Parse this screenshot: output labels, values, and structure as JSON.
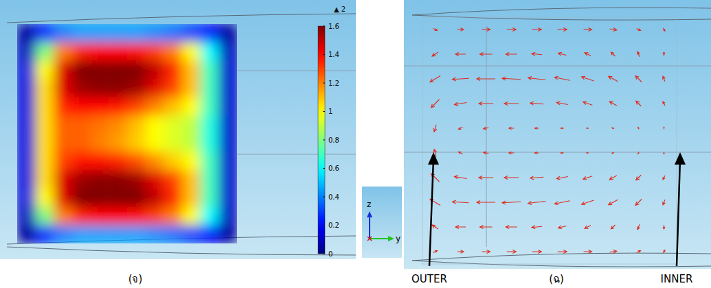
{
  "chart_data": [
    {
      "type": "heatmap",
      "title": "(จ)",
      "max_label": "▲ 2",
      "tick_labels": false,
      "cells": [
        [
          0.05,
          0.25,
          0.4,
          0.45,
          0.45,
          0.45,
          0.45,
          0.42,
          0.38,
          0.3,
          0.2,
          0.05
        ],
        [
          0.1,
          0.8,
          1.2,
          1.35,
          1.4,
          1.4,
          1.38,
          1.3,
          1.2,
          1.0,
          0.6,
          0.1
        ],
        [
          0.15,
          1.0,
          1.45,
          1.6,
          1.62,
          1.62,
          1.6,
          1.5,
          1.35,
          1.1,
          0.7,
          0.12
        ],
        [
          0.15,
          1.05,
          1.45,
          1.55,
          1.58,
          1.58,
          1.55,
          1.45,
          1.3,
          1.1,
          0.7,
          0.12
        ],
        [
          0.15,
          1.05,
          1.35,
          1.4,
          1.4,
          1.38,
          1.3,
          1.2,
          1.1,
          1.0,
          0.7,
          0.12
        ],
        [
          0.15,
          1.05,
          1.25,
          1.25,
          1.22,
          1.18,
          1.1,
          1.0,
          0.95,
          0.9,
          0.65,
          0.12
        ],
        [
          0.15,
          1.05,
          1.25,
          1.25,
          1.2,
          1.15,
          1.08,
          1.0,
          0.95,
          0.9,
          0.65,
          0.12
        ],
        [
          0.15,
          1.05,
          1.3,
          1.38,
          1.38,
          1.35,
          1.28,
          1.18,
          1.08,
          1.0,
          0.7,
          0.12
        ],
        [
          0.15,
          1.05,
          1.45,
          1.55,
          1.58,
          1.58,
          1.55,
          1.45,
          1.3,
          1.1,
          0.7,
          0.12
        ],
        [
          0.15,
          1.0,
          1.45,
          1.6,
          1.62,
          1.62,
          1.6,
          1.5,
          1.35,
          1.1,
          0.7,
          0.12
        ],
        [
          0.1,
          0.8,
          1.2,
          1.35,
          1.4,
          1.4,
          1.38,
          1.3,
          1.2,
          1.0,
          0.6,
          0.1
        ],
        [
          0.05,
          0.25,
          0.4,
          0.45,
          0.45,
          0.45,
          0.45,
          0.42,
          0.38,
          0.3,
          0.2,
          0.05
        ]
      ],
      "colorbar_lim": [
        0,
        1.6
      ],
      "colorbar_ticks": [
        0,
        0.2,
        0.4,
        0.6,
        0.8,
        1,
        1.2,
        1.4,
        1.6
      ]
    },
    {
      "type": "quiver",
      "title": "(ฉ)",
      "annotations": [
        "OUTER",
        "INNER"
      ],
      "xlabel": "y",
      "ylabel": "z",
      "color": "#e02a1c",
      "tick_labels": false,
      "xlim": [
        0,
        10
      ],
      "ylim": [
        0,
        10
      ],
      "x": [
        0.5,
        1.5,
        2.5,
        3.5,
        4.5,
        5.5,
        6.5,
        7.5,
        8.5,
        9.5
      ],
      "y": [
        9.5,
        8.5,
        7.5,
        6.5,
        5.5,
        4.5,
        3.5,
        2.5,
        1.5,
        0.5
      ],
      "u": [
        [
          0.2,
          0.3,
          0.4,
          0.45,
          0.45,
          0.45,
          0.4,
          0.35,
          0.2,
          0.1
        ],
        [
          -0.3,
          -0.5,
          -0.6,
          -0.55,
          -0.5,
          -0.4,
          -0.3,
          -0.2,
          -0.1,
          0
        ],
        [
          -0.5,
          -0.8,
          -0.9,
          -0.9,
          -0.85,
          -0.75,
          -0.6,
          -0.45,
          -0.3,
          -0.1
        ],
        [
          -0.4,
          -0.6,
          -0.7,
          -0.7,
          -0.65,
          -0.55,
          -0.45,
          -0.35,
          -0.25,
          -0.1
        ],
        [
          -0.1,
          -0.2,
          -0.25,
          -0.25,
          -0.2,
          -0.15,
          -0.1,
          -0.1,
          -0.05,
          0
        ],
        [
          -0.1,
          -0.2,
          -0.25,
          -0.25,
          -0.2,
          -0.15,
          -0.1,
          -0.1,
          -0.05,
          0
        ],
        [
          -0.4,
          -0.6,
          -0.7,
          -0.7,
          -0.65,
          -0.55,
          -0.45,
          -0.35,
          -0.25,
          -0.1
        ],
        [
          -0.5,
          -0.8,
          -0.9,
          -0.9,
          -0.85,
          -0.75,
          -0.6,
          -0.45,
          -0.3,
          -0.1
        ],
        [
          -0.3,
          -0.5,
          -0.6,
          -0.55,
          -0.5,
          -0.4,
          -0.3,
          -0.2,
          -0.1,
          0
        ],
        [
          0.2,
          0.3,
          0.4,
          0.45,
          0.45,
          0.45,
          0.4,
          0.35,
          0.2,
          0.1
        ]
      ],
      "w": [
        [
          -0.1,
          0,
          0,
          0,
          0,
          0,
          0,
          -0.05,
          -0.1,
          -0.15
        ],
        [
          -0.2,
          0,
          0,
          0,
          0.05,
          0.1,
          0.15,
          0.2,
          0.25,
          0.2
        ],
        [
          -0.3,
          -0.05,
          0,
          0.05,
          0.1,
          0.15,
          0.2,
          0.25,
          0.3,
          0.25
        ],
        [
          -0.4,
          -0.1,
          0,
          0,
          0.05,
          0.1,
          0.15,
          0.2,
          0.25,
          0.2
        ],
        [
          -0.35,
          -0.1,
          -0.05,
          0,
          0,
          0,
          0,
          0.05,
          0.1,
          0.1
        ],
        [
          0.35,
          0.1,
          0.05,
          0,
          0,
          0,
          0,
          -0.05,
          -0.1,
          -0.1
        ],
        [
          0.4,
          0.1,
          0,
          0,
          -0.05,
          -0.1,
          -0.15,
          -0.2,
          -0.25,
          -0.2
        ],
        [
          0.3,
          0.05,
          0,
          -0.05,
          -0.1,
          -0.15,
          -0.2,
          -0.25,
          -0.3,
          -0.25
        ],
        [
          0.2,
          0,
          0,
          0,
          -0.05,
          -0.1,
          -0.15,
          -0.2,
          -0.25,
          -0.2
        ],
        [
          0.1,
          0,
          0,
          0,
          0,
          0,
          0,
          0.05,
          0.1,
          0.15
        ]
      ]
    }
  ]
}
